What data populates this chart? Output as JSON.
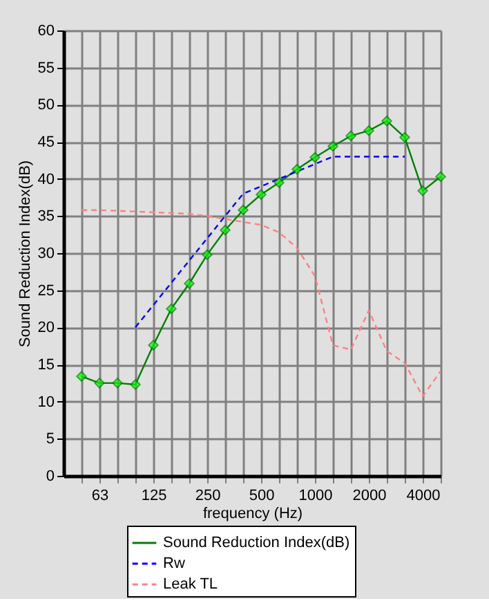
{
  "chart_data": {
    "type": "line",
    "xlabel": "frequency (Hz)",
    "ylabel": "Sound Reduction Index(dB)",
    "categories": [
      null,
      "63",
      null,
      null,
      "125",
      null,
      null,
      "250",
      null,
      null,
      "500",
      null,
      null,
      "1000",
      null,
      null,
      "2000",
      null,
      null,
      "4000",
      null
    ],
    "ylim": [
      0,
      60
    ],
    "yticks": [
      0,
      5,
      10,
      15,
      20,
      25,
      30,
      35,
      40,
      45,
      50,
      55,
      60
    ],
    "grid": true,
    "legend": "bottom",
    "series": [
      {
        "name": "Sound Reduction Index(dB)",
        "color": "#008000",
        "marker": "diamond",
        "line_style": "solid",
        "values": [
          13.4,
          12.5,
          12.5,
          12.3,
          17.6,
          22.5,
          25.9,
          29.8,
          33.1,
          35.8,
          37.9,
          39.5,
          41.3,
          42.9,
          44.4,
          45.8,
          46.5,
          47.8,
          45.6,
          38.4,
          40.3
        ]
      },
      {
        "name": "Rw",
        "color": "#0000ff",
        "marker": "none",
        "line_style": "dashed",
        "values": [
          null,
          null,
          null,
          20,
          23,
          26,
          29,
          32,
          35,
          38,
          39,
          40,
          41,
          42,
          43,
          43,
          43,
          43,
          43,
          null,
          null
        ]
      },
      {
        "name": "Leak TL",
        "color": "#ff8080",
        "marker": "none",
        "line_style": "dashed",
        "values": [
          35.8,
          35.8,
          35.7,
          35.6,
          35.5,
          35.4,
          35.3,
          35.0,
          34.6,
          34.2,
          33.8,
          32.8,
          30.7,
          26.9,
          17.6,
          17.0,
          22.3,
          16.8,
          15.2,
          10.7,
          14.1
        ]
      }
    ]
  }
}
